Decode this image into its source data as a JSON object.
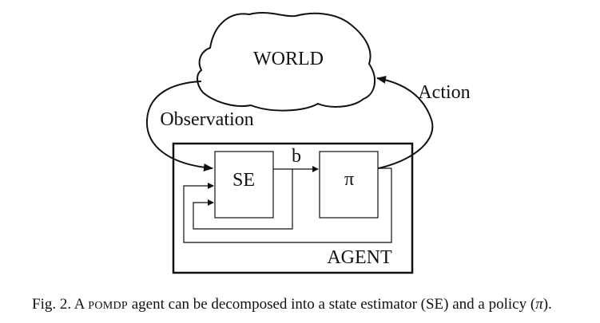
{
  "diagram": {
    "world_label": "WORLD",
    "action_label": "Action",
    "observation_label": "Observation",
    "se_label": "SE",
    "b_label": "b",
    "policy_label": "π",
    "agent_label": "AGENT"
  },
  "caption": {
    "fig_prefix": "Fig. 2. A",
    "pomdp": "POMDP",
    "text_main": "agent can be decomposed into a state estimator (SE) and a policy (",
    "pi_symbol": "π",
    "text_end": ")."
  }
}
